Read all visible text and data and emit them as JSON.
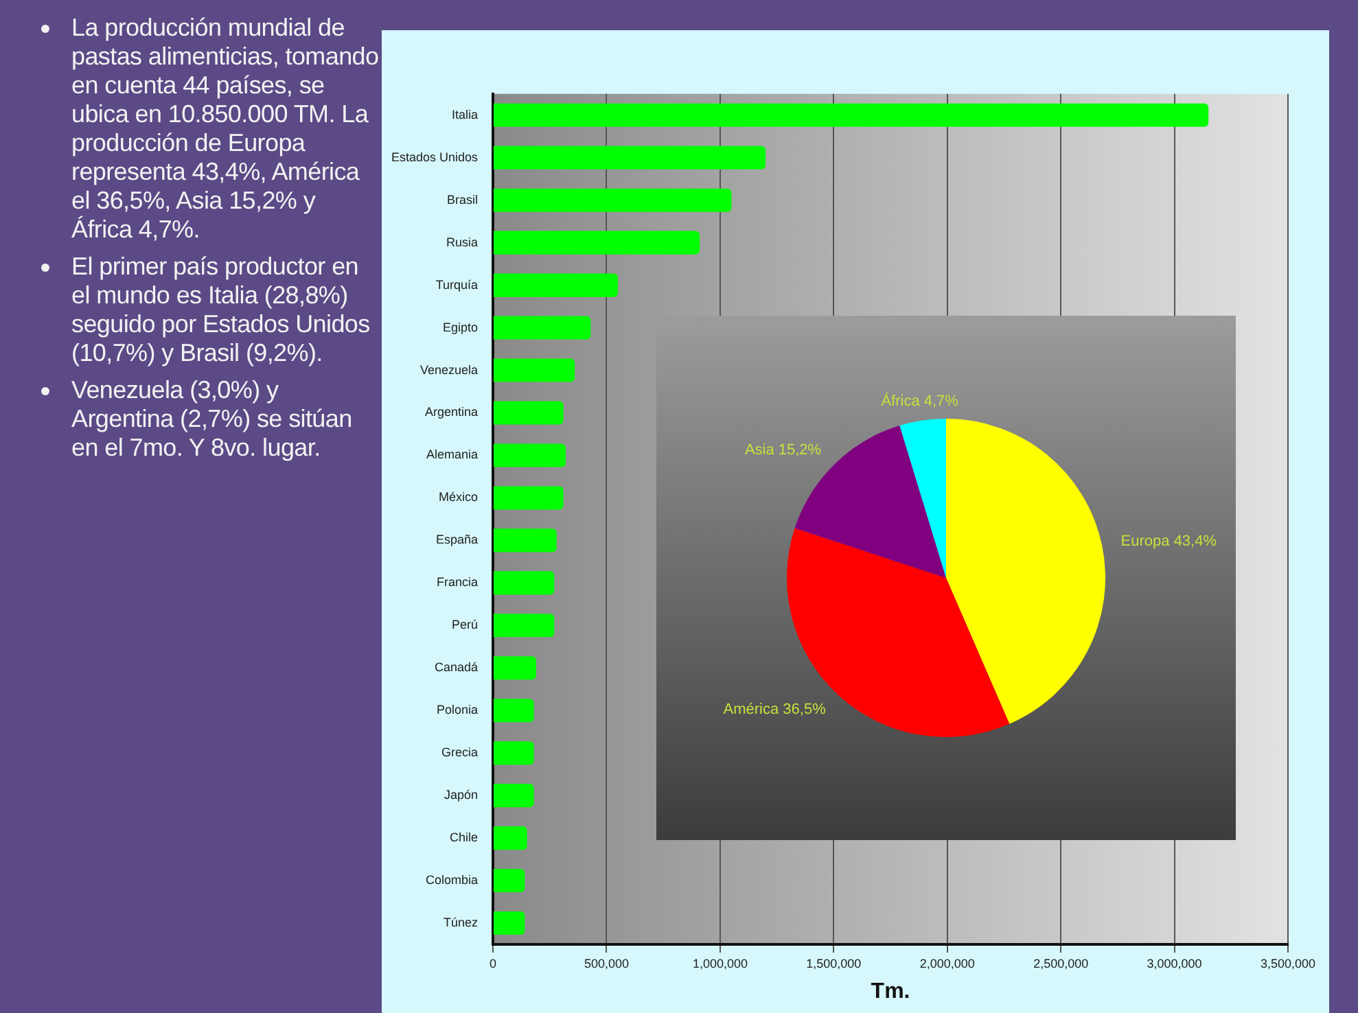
{
  "chart_data": [
    {
      "type": "bar",
      "orientation": "horizontal",
      "xlabel": "Tm.",
      "color": "#00ff00",
      "grid": "x",
      "categories": [
        "Italia",
        "Estados Unidos",
        "Brasil",
        "Rusia",
        "Turquía",
        "Egipto",
        "Venezuela",
        "Argentina",
        "Alemania",
        "México",
        "España",
        "Francia",
        "Perú",
        "Canadá",
        "Polonia",
        "Grecia",
        "Japón",
        "Chile",
        "Colombia",
        "Túnez"
      ],
      "values": [
        3150000,
        1200000,
        1050000,
        910000,
        550000,
        430000,
        360000,
        310000,
        320000,
        310000,
        280000,
        270000,
        270000,
        190000,
        180000,
        180000,
        180000,
        150000,
        140000,
        140000
      ],
      "xlim": [
        0,
        3500000
      ],
      "xticks": [
        0,
        {
          "value": 500000,
          "label": "500,000"
        },
        {
          "value": 1000000,
          "label": "1,000,000"
        },
        {
          "value": 1500000,
          "label": "1,500,000"
        },
        {
          "value": 2000000,
          "label": "2,000,000"
        },
        {
          "value": 2500000,
          "label": "2,500,000"
        },
        {
          "value": 3000000,
          "label": "3,000,000"
        },
        {
          "value": 3500000,
          "label": "3,500,000"
        }
      ],
      "annotations": [
        "La producción mundial de pastas alimenticias, tomando en cuenta 44 países, se ubica en 10.850.000 TM. La producción de Europa representa 43,4%, América el 36,5%, Asia 15,2% y África 4,7%.",
        "El primer país productor en el mundo es Italia (28,8%) seguido por Estados Unidos (10,7%) y Brasil (9,2%).",
        "Venezuela (3,0%) y Argentina (2,7%) se sitúan en el 7mo. Y 8vo. lugar."
      ]
    },
    {
      "type": "pie",
      "categories": [
        "Europa",
        "América",
        "Asia",
        "África"
      ],
      "values": [
        43.4,
        36.5,
        15.2,
        4.7
      ],
      "colors": [
        "#ffff00",
        "#ff0000",
        "#800080",
        "#00ffff"
      ],
      "value_labels": [
        "43,4%",
        "36,5%",
        "15,2%",
        "4,7%"
      ]
    }
  ]
}
